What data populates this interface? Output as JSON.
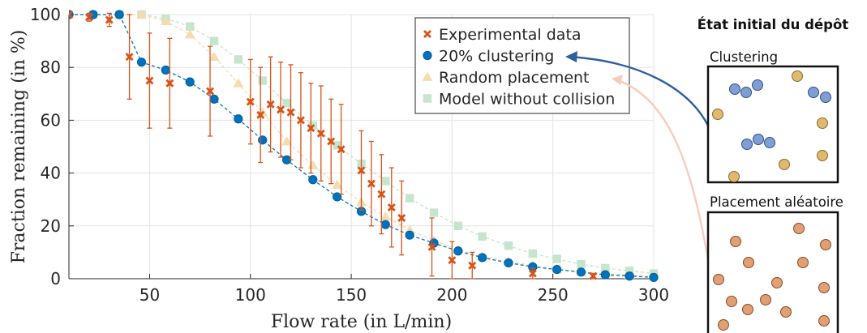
{
  "chart_data": {
    "type": "scatter",
    "xlabel": "Flow rate (in L/min)",
    "ylabel": "Fraction remaining (in %)",
    "xlim": [
      10,
      300
    ],
    "ylim": [
      0,
      100
    ],
    "xticks": [
      50,
      100,
      150,
      200,
      250,
      300
    ],
    "yticks": [
      0,
      20,
      40,
      60,
      80,
      100
    ],
    "grid": true,
    "legend_position": "top-right",
    "series": [
      {
        "name": "Experimental data",
        "marker": "x",
        "color": "#d95319",
        "points": [
          {
            "x": 10,
            "y": 100,
            "err": 0
          },
          {
            "x": 20,
            "y": 99,
            "err": 1.5
          },
          {
            "x": 30,
            "y": 98,
            "err": 2.5
          },
          {
            "x": 40,
            "y": 84,
            "err": 16
          },
          {
            "x": 50,
            "y": 75,
            "err": 18
          },
          {
            "x": 60,
            "y": 74,
            "err": 17
          },
          {
            "x": 80,
            "y": 71,
            "err": 17
          },
          {
            "x": 100,
            "y": 67,
            "err": 16
          },
          {
            "x": 105,
            "y": 62,
            "err": 18
          },
          {
            "x": 110,
            "y": 66,
            "err": 18
          },
          {
            "x": 115,
            "y": 64,
            "err": 18
          },
          {
            "x": 120,
            "y": 63,
            "err": 18
          },
          {
            "x": 125,
            "y": 60,
            "err": 18
          },
          {
            "x": 130,
            "y": 57,
            "err": 17
          },
          {
            "x": 135,
            "y": 55,
            "err": 18
          },
          {
            "x": 140,
            "y": 52,
            "err": 16
          },
          {
            "x": 145,
            "y": 49,
            "err": 17
          },
          {
            "x": 155,
            "y": 41,
            "err": 15
          },
          {
            "x": 160,
            "y": 36,
            "err": 16
          },
          {
            "x": 165,
            "y": 32,
            "err": 15
          },
          {
            "x": 170,
            "y": 27,
            "err": 15
          },
          {
            "x": 175,
            "y": 23,
            "err": 14
          },
          {
            "x": 190,
            "y": 12,
            "err": 11
          },
          {
            "x": 200,
            "y": 7,
            "err": 7
          },
          {
            "x": 210,
            "y": 5,
            "err": 5
          },
          {
            "x": 240,
            "y": 2,
            "err": 2
          },
          {
            "x": 270,
            "y": 1,
            "err": 1
          }
        ]
      },
      {
        "name": "20% clustering",
        "marker": "circle",
        "color": "#0072bd",
        "points": [
          {
            "x": 10,
            "y": 100
          },
          {
            "x": 22,
            "y": 100
          },
          {
            "x": 35,
            "y": 100
          },
          {
            "x": 46,
            "y": 82
          },
          {
            "x": 58,
            "y": 79
          },
          {
            "x": 70,
            "y": 74.5
          },
          {
            "x": 82,
            "y": 68
          },
          {
            "x": 94,
            "y": 60.5
          },
          {
            "x": 106,
            "y": 52.5
          },
          {
            "x": 118,
            "y": 45
          },
          {
            "x": 131,
            "y": 37.5
          },
          {
            "x": 143,
            "y": 31
          },
          {
            "x": 155,
            "y": 25.5
          },
          {
            "x": 167,
            "y": 20.5
          },
          {
            "x": 179,
            "y": 16.5
          },
          {
            "x": 191,
            "y": 13.5
          },
          {
            "x": 203,
            "y": 10.5
          },
          {
            "x": 215,
            "y": 8
          },
          {
            "x": 228,
            "y": 6
          },
          {
            "x": 240,
            "y": 4.5
          },
          {
            "x": 252,
            "y": 3.5
          },
          {
            "x": 264,
            "y": 2.5
          },
          {
            "x": 276,
            "y": 1.5
          },
          {
            "x": 288,
            "y": 1
          },
          {
            "x": 300,
            "y": 0.5
          }
        ]
      },
      {
        "name": "Random placement",
        "marker": "triangle",
        "color": "#f4dcb0",
        "points": [
          {
            "x": 10,
            "y": 100
          },
          {
            "x": 22,
            "y": 100
          },
          {
            "x": 35,
            "y": 100
          },
          {
            "x": 46,
            "y": 100
          },
          {
            "x": 58,
            "y": 97.5
          },
          {
            "x": 70,
            "y": 92.5
          },
          {
            "x": 82,
            "y": 84
          },
          {
            "x": 94,
            "y": 74
          },
          {
            "x": 106,
            "y": 63
          },
          {
            "x": 118,
            "y": 52
          },
          {
            "x": 131,
            "y": 43
          },
          {
            "x": 143,
            "y": 35.5
          },
          {
            "x": 155,
            "y": 29
          },
          {
            "x": 167,
            "y": 23.5
          },
          {
            "x": 179,
            "y": 18.5
          },
          {
            "x": 191,
            "y": 14.5
          },
          {
            "x": 203,
            "y": 11
          },
          {
            "x": 215,
            "y": 8.5
          },
          {
            "x": 228,
            "y": 6.5
          },
          {
            "x": 240,
            "y": 5
          },
          {
            "x": 252,
            "y": 3.5
          },
          {
            "x": 264,
            "y": 2.5
          },
          {
            "x": 276,
            "y": 2
          },
          {
            "x": 288,
            "y": 1.5
          },
          {
            "x": 300,
            "y": 1
          }
        ]
      },
      {
        "name": "Model without collision",
        "marker": "square",
        "color": "#c5e5cc",
        "points": [
          {
            "x": 10,
            "y": 100
          },
          {
            "x": 22,
            "y": 100
          },
          {
            "x": 35,
            "y": 100
          },
          {
            "x": 46,
            "y": 100
          },
          {
            "x": 58,
            "y": 98.5
          },
          {
            "x": 70,
            "y": 95.5
          },
          {
            "x": 82,
            "y": 90
          },
          {
            "x": 94,
            "y": 83
          },
          {
            "x": 106,
            "y": 75
          },
          {
            "x": 118,
            "y": 66.5
          },
          {
            "x": 131,
            "y": 58
          },
          {
            "x": 143,
            "y": 50.5
          },
          {
            "x": 155,
            "y": 43.5
          },
          {
            "x": 167,
            "y": 37
          },
          {
            "x": 179,
            "y": 30.5
          },
          {
            "x": 191,
            "y": 25
          },
          {
            "x": 203,
            "y": 20
          },
          {
            "x": 215,
            "y": 16
          },
          {
            "x": 228,
            "y": 12.5
          },
          {
            "x": 240,
            "y": 9.5
          },
          {
            "x": 252,
            "y": 7.5
          },
          {
            "x": 264,
            "y": 5.5
          },
          {
            "x": 276,
            "y": 4
          },
          {
            "x": 288,
            "y": 3
          },
          {
            "x": 300,
            "y": 2
          }
        ]
      }
    ]
  },
  "side_panel": {
    "title": "État initial du dépôt",
    "clustering_label": "Clustering",
    "random_label": "Placement aléatoire",
    "blue_color": "#7f9fd4",
    "orange_color": "#e0a074",
    "gold_color": "#e0b870"
  }
}
